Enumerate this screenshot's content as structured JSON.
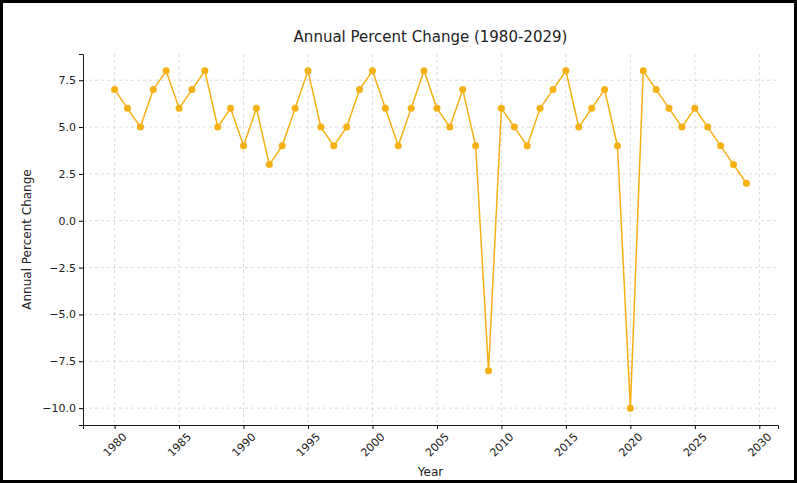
{
  "chart_data": {
    "type": "line",
    "title": "Annual Percent Change (1980-2029)",
    "x_label": "Year",
    "y_label": "Annual Percent Change",
    "x": [
      1980,
      1981,
      1982,
      1983,
      1984,
      1985,
      1986,
      1987,
      1988,
      1989,
      1990,
      1991,
      1992,
      1993,
      1994,
      1995,
      1996,
      1997,
      1998,
      1999,
      2000,
      2001,
      2002,
      2003,
      2004,
      2005,
      2006,
      2007,
      2008,
      2009,
      2010,
      2011,
      2012,
      2013,
      2014,
      2015,
      2016,
      2017,
      2018,
      2019,
      2020,
      2021,
      2022,
      2023,
      2024,
      2025,
      2026,
      2027,
      2028,
      2029
    ],
    "values": [
      7,
      6,
      5,
      7,
      8,
      6,
      7,
      8,
      5,
      6,
      4,
      6,
      3,
      4,
      6,
      8,
      5,
      4,
      5,
      7,
      8,
      6,
      4,
      6,
      8,
      6,
      5,
      7,
      4,
      -8,
      6,
      5,
      4,
      6,
      7,
      8,
      5,
      6,
      7,
      4,
      -10,
      8,
      7,
      6,
      5,
      6,
      5,
      4,
      3,
      2
    ],
    "color": "#f5b014",
    "marker": "circle",
    "line_style": "solid",
    "grid": true,
    "xlim": [
      1977.55,
      2031.45
    ],
    "xticks": [
      1980,
      1985,
      1990,
      1995,
      2000,
      2005,
      2010,
      2015,
      2020,
      2025,
      2030
    ],
    "ylim": [
      -10.9,
      8.9
    ],
    "yticks": [
      {
        "value": -10,
        "label": "−10.0"
      },
      {
        "value": -7.5,
        "label": "−7.5"
      },
      {
        "value": -5,
        "label": "−5.0"
      },
      {
        "value": -2.5,
        "label": "−2.5"
      },
      {
        "value": 0,
        "label": "0.0"
      },
      2.5,
      {
        "value": 5,
        "label": "5.0"
      },
      7.5
    ]
  }
}
